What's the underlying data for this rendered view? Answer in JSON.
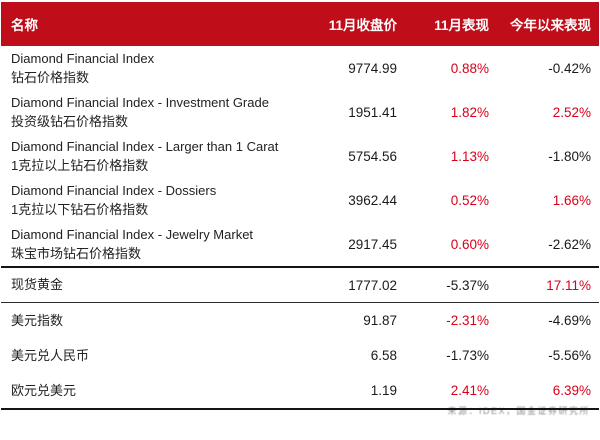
{
  "colors": {
    "header_bg": "#c00d1a",
    "header_text": "#ffffff",
    "highlight_red": "#d9001b",
    "text_dark": "#1a1a1a",
    "separator_black": "#141414",
    "watermark_gray": "#8f8f8f"
  },
  "watermark": {
    "text": "来源：IDEX，国金证券研究所"
  },
  "chart_data": {
    "type": "table",
    "columns": [
      "名称",
      "11月收盘价",
      "11月表现",
      "今年以来表现"
    ],
    "rows": [
      {
        "name_en": "Diamond Financial Index",
        "name_cn": "钻石价格指数",
        "close": "9774.99",
        "nov": "0.88%",
        "nov_color": "red",
        "ytd": "-0.42%",
        "ytd_color": "dark",
        "group": "diamond"
      },
      {
        "name_en": "Diamond Financial Index - Investment Grade",
        "name_cn": "投资级钻石价格指数",
        "close": "1951.41",
        "nov": "1.82%",
        "nov_color": "red",
        "ytd": "2.52%",
        "ytd_color": "red",
        "group": "diamond"
      },
      {
        "name_en": "Diamond Financial Index - Larger than 1 Carat",
        "name_cn": "1克拉以上钻石价格指数",
        "close": "5754.56",
        "nov": "1.13%",
        "nov_color": "red",
        "ytd": "-1.80%",
        "ytd_color": "dark",
        "group": "diamond"
      },
      {
        "name_en": "Diamond Financial Index - Dossiers",
        "name_cn": "1克拉以下钻石价格指数",
        "close": "3962.44",
        "nov": "0.52%",
        "nov_color": "red",
        "ytd": "1.66%",
        "ytd_color": "red",
        "group": "diamond"
      },
      {
        "name_en": "Diamond Financial Index - Jewelry Market",
        "name_cn": "珠宝市场钻石价格指数",
        "close": "2917.45",
        "nov": "0.60%",
        "nov_color": "red",
        "ytd": "-2.62%",
        "ytd_color": "dark",
        "group": "diamond"
      },
      {
        "name_cn": "现货黄金",
        "close": "1777.02",
        "nov": "-5.37%",
        "nov_color": "dark",
        "ytd": "17.11%",
        "ytd_color": "red",
        "group": "macro"
      },
      {
        "name_cn": "美元指数",
        "close": "91.87",
        "nov": "-2.31%",
        "nov_color": "red",
        "ytd": "-4.69%",
        "ytd_color": "dark",
        "group": "macro"
      },
      {
        "name_cn": "美元兑人民币",
        "close": "6.58",
        "nov": "-1.73%",
        "nov_color": "dark",
        "ytd": "-5.56%",
        "ytd_color": "dark",
        "group": "macro"
      },
      {
        "name_cn": "欧元兑美元",
        "close": "1.19",
        "nov": "2.41%",
        "nov_color": "red",
        "ytd": "6.39%",
        "ytd_color": "red",
        "group": "macro"
      }
    ]
  }
}
